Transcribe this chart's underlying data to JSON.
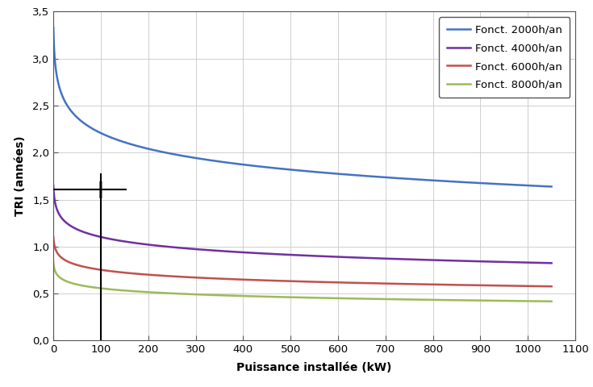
{
  "xlabel": "Puissance installée (kW)",
  "ylabel": "TRI (années)",
  "xlim": [
    0,
    1100
  ],
  "ylim": [
    0.0,
    3.5
  ],
  "xtick_labels": [
    "0",
    "100",
    "200",
    "300",
    "400",
    "500",
    "600",
    "700",
    "800",
    "900",
    "1000",
    "1100"
  ],
  "ytick_labels": [
    "0,0",
    "0,5",
    "1,0",
    "1,5",
    "2,0",
    "2,5",
    "3,0",
    "3,5"
  ],
  "series": [
    {
      "label": "Fonct. 2000h/an",
      "color": "#4472C4",
      "x0_val": 3.33,
      "x1000_val": 1.65
    },
    {
      "label": "Fonct. 4000h/an",
      "color": "#7030A0",
      "x0_val": 1.65,
      "x1000_val": 0.83
    },
    {
      "label": "Fonct. 6000h/an",
      "color": "#C0504D",
      "x0_val": 1.1,
      "x1000_val": 0.58
    },
    {
      "label": "Fonct. 8000h/an",
      "color": "#9BBB59",
      "x0_val": 0.83,
      "x1000_val": 0.42
    }
  ],
  "crosshair_x": 100,
  "crosshair_y": 1.605,
  "background_color": "#ffffff",
  "grid_color": "#c8c8c8",
  "linewidth": 1.8,
  "legend_fontsize": 9.5,
  "axis_fontsize": 10,
  "tick_fontsize": 9.5
}
